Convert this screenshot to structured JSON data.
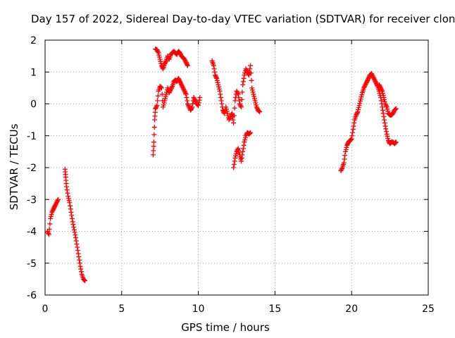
{
  "chart_data": {
    "type": "scatter",
    "title": "Day 157 of 2022, Sidereal Day-to-day VTEC variation (SDTVAR) for receiver clon",
    "xlabel": "GPS time / hours",
    "ylabel": "SDTVAR / TECUs",
    "xlim": [
      0,
      25
    ],
    "ylim": [
      -6,
      2
    ],
    "xticks": [
      0,
      5,
      10,
      15,
      20,
      25
    ],
    "yticks": [
      -6,
      -5,
      -4,
      -3,
      -2,
      -1,
      0,
      1,
      2
    ],
    "grid": true,
    "marker": "+",
    "color": "#ff0000",
    "series": [
      {
        "name": "SDTVAR",
        "segments": [
          {
            "x": [
              0.15,
              0.25,
              0.35,
              0.45,
              0.55,
              0.65,
              0.75,
              0.85
            ],
            "y": [
              -4.0,
              -4.1,
              -3.6,
              -3.4,
              -3.3,
              -3.2,
              -3.1,
              -3.0
            ]
          },
          {
            "x": [
              1.3,
              1.35,
              1.4,
              1.5,
              1.6,
              1.7,
              1.8,
              1.9,
              2.0,
              2.1,
              2.2,
              2.3,
              2.4,
              2.5,
              2.6
            ],
            "y": [
              -2.05,
              -2.3,
              -2.6,
              -2.9,
              -3.1,
              -3.4,
              -3.7,
              -3.95,
              -4.2,
              -4.5,
              -4.8,
              -5.1,
              -5.35,
              -5.5,
              -5.55
            ]
          },
          {
            "x": [
              7.05,
              7.1,
              7.15,
              7.2,
              7.3,
              7.4,
              7.5,
              7.6,
              7.7,
              7.8,
              7.9,
              8.0,
              8.1,
              8.2,
              8.3,
              8.4,
              8.5,
              8.6,
              8.7,
              8.8,
              8.9,
              9.0,
              9.1,
              9.2,
              9.3,
              9.4,
              9.5,
              9.6,
              9.7,
              9.8,
              9.9,
              10.0,
              10.1
            ],
            "y": [
              -1.6,
              -1.2,
              -0.5,
              -0.15,
              -0.05,
              0.4,
              0.55,
              0.5,
              -0.1,
              0.1,
              0.3,
              0.5,
              0.35,
              0.45,
              0.55,
              0.7,
              0.75,
              0.7,
              0.8,
              0.7,
              0.6,
              0.5,
              0.4,
              0.3,
              0.0,
              -0.1,
              -0.2,
              -0.1,
              0.2,
              0.1,
              0.0,
              -0.05,
              0.2
            ]
          },
          {
            "x": [
              7.2,
              7.3,
              7.4,
              7.5,
              7.6,
              7.7,
              7.8,
              7.9,
              8.0,
              8.1,
              8.2,
              8.3,
              8.4,
              8.5,
              8.6,
              8.7,
              8.8,
              8.9,
              9.0,
              9.1,
              9.2,
              9.3
            ],
            "y": [
              1.72,
              1.7,
              1.6,
              1.4,
              1.2,
              1.1,
              1.25,
              1.35,
              1.5,
              1.4,
              1.55,
              1.6,
              1.65,
              1.6,
              1.55,
              1.65,
              1.6,
              1.5,
              1.45,
              1.4,
              1.3,
              1.2
            ]
          },
          {
            "x": [
              10.9,
              11.0,
              11.1,
              11.2,
              11.3,
              11.4,
              11.5,
              11.6,
              11.7,
              11.8,
              11.9,
              12.0,
              12.1,
              12.2,
              12.3,
              12.4,
              12.5,
              12.6,
              12.7,
              12.8,
              12.9,
              13.0,
              13.1,
              13.2,
              13.3,
              13.4,
              13.5,
              13.6,
              13.7,
              13.8,
              13.9,
              14.0
            ],
            "y": [
              1.35,
              1.2,
              0.9,
              0.8,
              0.6,
              0.4,
              0.1,
              -0.2,
              -0.3,
              -0.1,
              -0.3,
              -0.5,
              -0.4,
              -0.3,
              -0.6,
              0.1,
              0.4,
              0.3,
              0.0,
              -0.1,
              0.6,
              0.9,
              1.1,
              1.0,
              0.9,
              1.2,
              0.5,
              0.3,
              0.1,
              -0.1,
              -0.2,
              -0.25
            ]
          },
          {
            "x": [
              12.3,
              12.4,
              12.5,
              12.6,
              12.7,
              12.8,
              12.9,
              13.0,
              13.1,
              13.2,
              13.3,
              13.4
            ],
            "y": [
              -2.0,
              -1.7,
              -1.5,
              -1.4,
              -1.6,
              -1.8,
              -1.5,
              -1.2,
              -1.0,
              -0.9,
              -0.95,
              -0.9
            ]
          },
          {
            "x": [
              19.3,
              19.4,
              19.5,
              19.6,
              19.7,
              19.8,
              19.9,
              20.0,
              20.1,
              20.2,
              20.3,
              20.4,
              20.5,
              20.6,
              20.7,
              20.8,
              20.9,
              21.0,
              21.1,
              21.2,
              21.3,
              21.4,
              21.5,
              21.6,
              21.7,
              21.8,
              21.9,
              22.0,
              22.1,
              22.2,
              22.3,
              22.4,
              22.5,
              22.6,
              22.7,
              22.8,
              22.9
            ],
            "y": [
              -2.1,
              -2.0,
              -1.85,
              -1.5,
              -1.3,
              -1.2,
              -1.15,
              -1.1,
              -0.8,
              -0.5,
              -0.35,
              -0.25,
              -0.05,
              0.15,
              0.35,
              0.5,
              0.6,
              0.7,
              0.8,
              0.9,
              0.95,
              0.85,
              0.75,
              0.65,
              0.55,
              0.4,
              0.2,
              -0.1,
              -0.4,
              -0.7,
              -0.95,
              -1.15,
              -1.25,
              -1.2,
              -1.2,
              -1.25,
              -1.2
            ]
          },
          {
            "x": [
              21.8,
              21.9,
              22.0,
              22.1,
              22.2,
              22.3,
              22.4,
              22.5,
              22.6,
              22.7,
              22.8,
              22.9
            ],
            "y": [
              0.6,
              0.5,
              0.4,
              0.2,
              0.0,
              -0.1,
              -0.3,
              -0.35,
              -0.35,
              -0.3,
              -0.2,
              -0.15
            ]
          }
        ]
      }
    ]
  }
}
